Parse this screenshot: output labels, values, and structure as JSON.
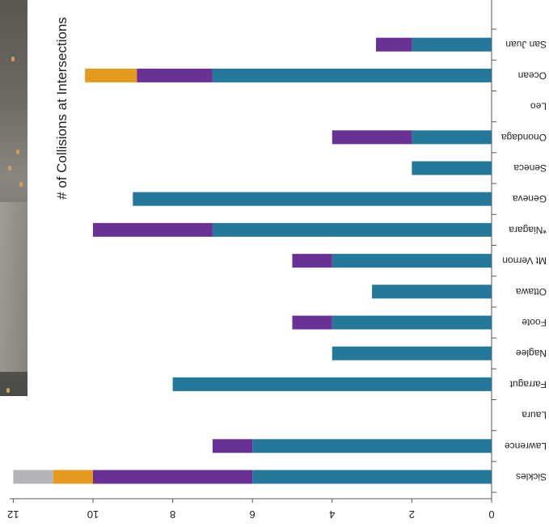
{
  "chart_data": {
    "type": "bar",
    "stacked": true,
    "orientation": "horizontal-bars, rotated 180 degrees",
    "title": "# of Collisions at Intersections",
    "categories": [
      "Sickles",
      "Lawrence",
      "Laura",
      "Farragut",
      "Naglee",
      "Foote",
      "Ottawa",
      "Mt Vernon",
      "*Niagara",
      "Geneva",
      "Seneca",
      "Onondaga",
      "Leo",
      "Ocean",
      "San Juan"
    ],
    "series": [
      {
        "values": [
          6,
          6,
          0,
          8,
          4,
          4,
          3,
          4,
          7,
          9,
          2,
          2,
          0,
          7,
          2
        ],
        "color": "#24799a"
      },
      {
        "values": [
          4,
          1,
          0,
          0,
          0,
          1,
          0,
          1,
          3,
          0,
          0,
          2,
          0,
          1.9,
          0.9
        ],
        "color": "#6a3195"
      },
      {
        "values": [
          1,
          0,
          0,
          0,
          0,
          0,
          0,
          0,
          0,
          0,
          0,
          0,
          0,
          1.3,
          0
        ],
        "color": "#e39a1d"
      },
      {
        "values": [
          1,
          0,
          0,
          0,
          0,
          0,
          0,
          0,
          0,
          0,
          0,
          0,
          0,
          0,
          0
        ],
        "color": "#b4b4b8"
      }
    ],
    "yticks": [
      "0",
      "2",
      "4",
      "6",
      "8",
      "10",
      "12"
    ],
    "ylim": [
      0,
      12
    ]
  }
}
